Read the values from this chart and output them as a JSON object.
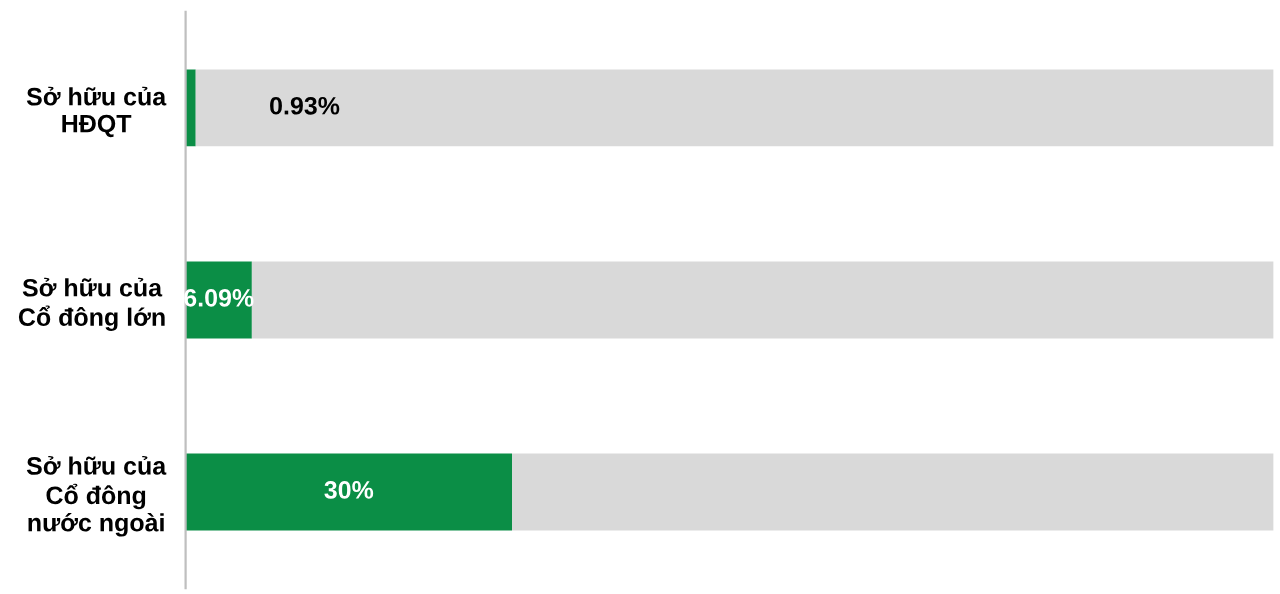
{
  "chart_data": {
    "type": "bar",
    "orientation": "horizontal",
    "stacked": true,
    "categories": [
      "Sở hữu của\nHĐQT",
      "Sở hữu của\nCổ đông lớn",
      "Sở hữu của\nCổ đông\nnước ngoài"
    ],
    "series": [
      {
        "color": "#0b8e46",
        "values": [
          0.93,
          6.09,
          30
        ],
        "value_labels": [
          "0.93%",
          "6.09%",
          "30%"
        ]
      },
      {
        "color": "#d9d9d9",
        "values": [
          99.07,
          93.91,
          70
        ]
      }
    ],
    "xlim": [
      0,
      100
    ],
    "tick_labels": "y",
    "grid": false,
    "legend": false
  }
}
